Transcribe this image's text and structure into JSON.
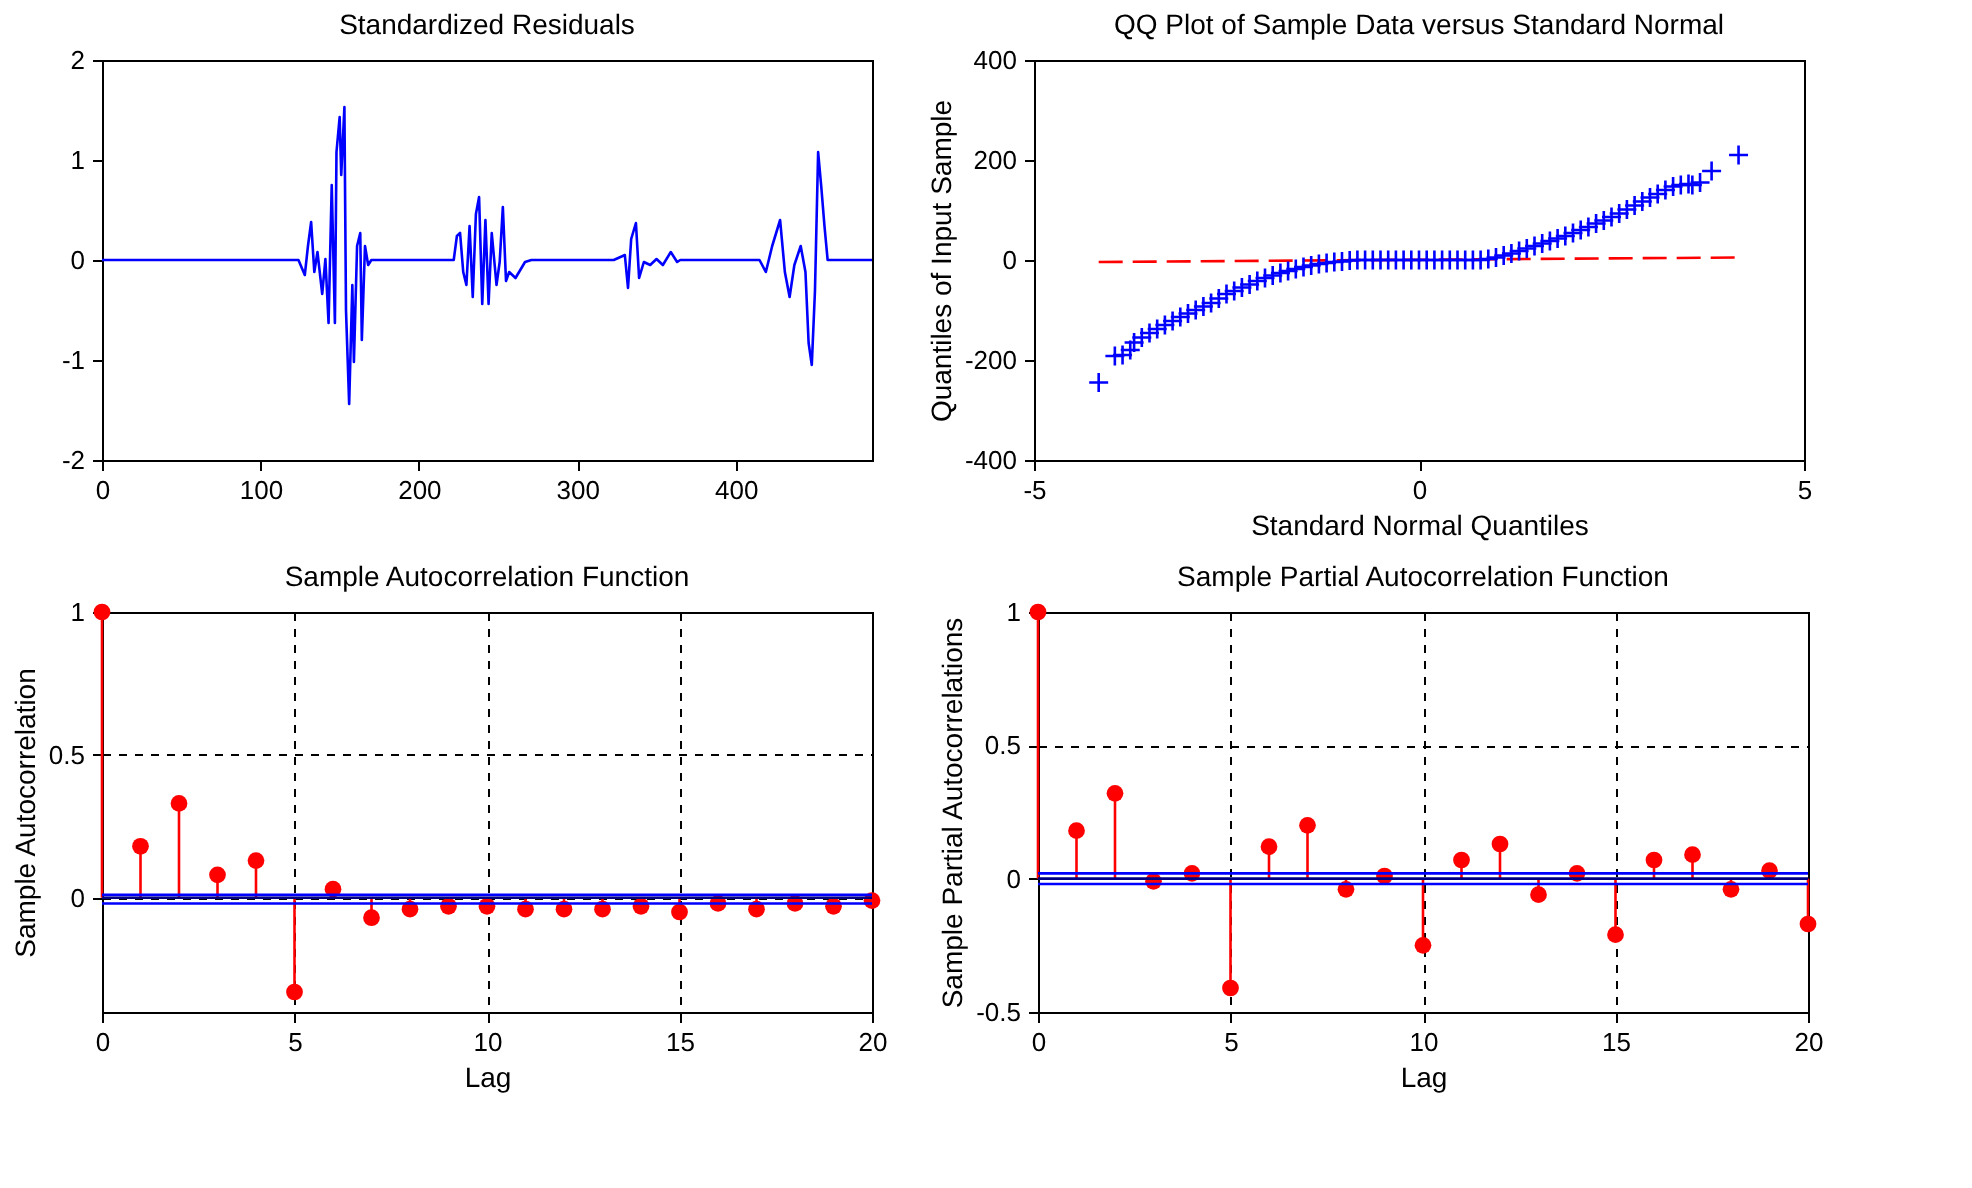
{
  "chart_data": [
    {
      "type": "line",
      "title": "Standardized Residuals",
      "xlim": [
        0,
        486
      ],
      "xticks": [
        0,
        100,
        200,
        300,
        400
      ],
      "ylim": [
        -2,
        2
      ],
      "yticks": [
        -2,
        -1,
        0,
        1,
        2
      ],
      "series": [
        {
          "color": "#0000ff",
          "x": [
            0,
            124,
            128,
            130,
            132,
            134,
            136,
            139,
            141,
            143,
            145,
            147,
            148,
            150,
            151,
            153,
            154,
            156,
            158,
            159,
            161,
            163,
            164,
            166,
            168,
            170,
            222,
            224,
            226,
            228,
            230,
            232,
            234,
            236,
            238,
            240,
            242,
            244,
            246,
            249,
            251,
            253,
            255,
            257,
            261,
            267,
            271,
            323,
            330,
            332,
            334,
            337,
            339,
            342,
            346,
            350,
            354,
            359,
            363,
            365,
            415,
            419,
            423,
            428,
            431,
            434,
            437,
            441,
            444,
            446,
            448,
            450,
            452,
            454,
            456,
            458,
            486
          ],
          "values": [
            0,
            0,
            -0.15,
            0.14,
            0.38,
            -0.12,
            0.08,
            -0.34,
            0.01,
            -0.63,
            0.75,
            -0.63,
            1.08,
            1.43,
            0.85,
            1.53,
            -0.5,
            -1.44,
            -0.25,
            -1.02,
            0.14,
            0.27,
            -0.8,
            0.14,
            -0.05,
            0,
            0,
            0.24,
            0.27,
            -0.12,
            -0.25,
            0.34,
            -0.37,
            0.46,
            0.63,
            -0.44,
            0.4,
            -0.44,
            0.27,
            -0.25,
            -0.02,
            0.53,
            -0.21,
            -0.12,
            -0.18,
            -0.02,
            0,
            0,
            0.05,
            -0.28,
            0.21,
            0.37,
            -0.18,
            -0.02,
            -0.05,
            0.01,
            -0.05,
            0.08,
            -0.02,
            0,
            0,
            -0.12,
            0.14,
            0.4,
            -0.12,
            -0.37,
            -0.05,
            0.14,
            -0.12,
            -0.83,
            -1.05,
            -0.31,
            1.08,
            0.73,
            0.34,
            0,
            0
          ]
        }
      ]
    },
    {
      "type": "scatter",
      "title": "QQ Plot of Sample Data versus Standard Normal",
      "xlabel": "Standard Normal Quantiles",
      "ylabel": "Quantiles of Input Sample",
      "xlim": [
        -5,
        5
      ],
      "xticks": [
        -5,
        0,
        5
      ],
      "ylim": [
        -400,
        400
      ],
      "yticks": [
        -400,
        -200,
        0,
        200,
        400
      ],
      "marker": "cross",
      "series": [
        {
          "type": "line",
          "color": "#ff0000",
          "line_style": "dashed",
          "marker": "none",
          "x": [
            -4.16,
            4.15
          ],
          "values": [
            -4,
            5
          ]
        },
        {
          "color": "#0000ff",
          "x": [
            -4.16,
            -3.95,
            -3.85,
            -3.75,
            -3.7,
            -3.6,
            -3.5,
            -3.4,
            -3.3,
            -3.2,
            -3.1,
            -3.0,
            -2.9,
            -2.8,
            -2.7,
            -2.6,
            -2.5,
            -2.4,
            -2.3,
            -2.2,
            -2.1,
            -2.0,
            -1.9,
            -1.8,
            -1.7,
            -1.6,
            -1.5,
            -1.4,
            -1.3,
            -1.2,
            -1.1,
            -1.0,
            -0.9,
            -0.8,
            -0.7,
            -0.6,
            -0.5,
            -0.4,
            -0.3,
            -0.2,
            -0.1,
            0,
            0.1,
            0.2,
            0.3,
            0.4,
            0.5,
            0.6,
            0.7,
            0.8,
            0.9,
            1.0,
            1.1,
            1.2,
            1.3,
            1.4,
            1.5,
            1.6,
            1.7,
            1.8,
            1.9,
            2.0,
            2.1,
            2.2,
            2.3,
            2.4,
            2.5,
            2.6,
            2.7,
            2.8,
            2.9,
            3.0,
            3.1,
            3.2,
            3.3,
            3.4,
            3.5,
            3.55,
            3.65,
            3.8,
            4.15
          ],
          "values": [
            -245,
            -192,
            -190,
            -180,
            -165,
            -155,
            -146,
            -138,
            -130,
            -122,
            -114,
            -107,
            -100,
            -93,
            -86,
            -77,
            -68,
            -62,
            -55,
            -49,
            -42,
            -36,
            -31,
            -26,
            -22,
            -18,
            -14,
            -11,
            -8,
            -6,
            -4,
            -3,
            -1,
            0,
            0,
            0,
            0,
            0,
            0,
            0,
            0,
            0,
            0,
            0,
            0,
            0,
            0,
            0,
            0,
            0,
            2,
            5,
            9,
            13,
            18,
            23,
            28,
            33,
            38,
            43,
            48,
            54,
            60,
            66,
            73,
            79,
            86,
            93,
            101,
            109,
            117,
            125,
            132,
            140,
            147,
            150,
            152,
            150,
            155,
            178,
            210
          ]
        }
      ]
    },
    {
      "type": "lollipop",
      "title": "Sample Autocorrelation Function",
      "xlabel": "Lag",
      "ylabel": "Sample Autocorrelation",
      "xlim": [
        0,
        20
      ],
      "xticks": [
        0,
        5,
        10,
        15,
        20
      ],
      "ylim": [
        -0.4,
        1
      ],
      "yticks": [
        0,
        0.5,
        1
      ],
      "grid": true,
      "marker": "circle",
      "series": [
        {
          "color": "#ff0000",
          "x": [
            0,
            1,
            2,
            3,
            4,
            5,
            6,
            7,
            8,
            9,
            10,
            11,
            12,
            13,
            14,
            15,
            16,
            17,
            18,
            19,
            20
          ],
          "values": [
            1,
            0.18,
            0.33,
            0.08,
            0.13,
            -0.33,
            0.03,
            -0.07,
            -0.04,
            -0.03,
            -0.03,
            -0.04,
            -0.04,
            -0.04,
            -0.03,
            -0.05,
            -0.02,
            -0.04,
            -0.02,
            -0.03,
            -0.01
          ]
        }
      ],
      "ref_lines": [
        {
          "axis": "y",
          "value": 0.01,
          "color": "#0000ff"
        },
        {
          "axis": "y",
          "value": -0.02,
          "color": "#0000ff"
        },
        {
          "axis": "y",
          "value": 0,
          "color": "#000080"
        }
      ]
    },
    {
      "type": "lollipop",
      "title": "Sample Partial Autocorrelation Function",
      "xlabel": "Lag",
      "ylabel": "Sample Partial Autocorrelations",
      "xlim": [
        0,
        20
      ],
      "xticks": [
        0,
        5,
        10,
        15,
        20
      ],
      "ylim": [
        -0.5,
        1
      ],
      "yticks": [
        -0.5,
        0,
        0.5,
        1
      ],
      "grid": true,
      "marker": "circle",
      "series": [
        {
          "color": "#ff0000",
          "x": [
            0,
            1,
            2,
            3,
            4,
            5,
            6,
            7,
            8,
            9,
            10,
            11,
            12,
            13,
            14,
            15,
            16,
            17,
            18,
            19,
            20
          ],
          "values": [
            1,
            0.18,
            0.32,
            -0.01,
            0.02,
            -0.41,
            0.12,
            0.2,
            -0.04,
            0.01,
            -0.25,
            0.07,
            0.13,
            -0.06,
            0.02,
            -0.21,
            0.07,
            0.09,
            -0.04,
            0.03,
            -0.17
          ]
        }
      ],
      "ref_lines": [
        {
          "axis": "y",
          "value": 0.02,
          "color": "#0000ff"
        },
        {
          "axis": "y",
          "value": -0.02,
          "color": "#0000ff"
        },
        {
          "axis": "y",
          "value": 0,
          "color": "#000080"
        }
      ]
    }
  ]
}
